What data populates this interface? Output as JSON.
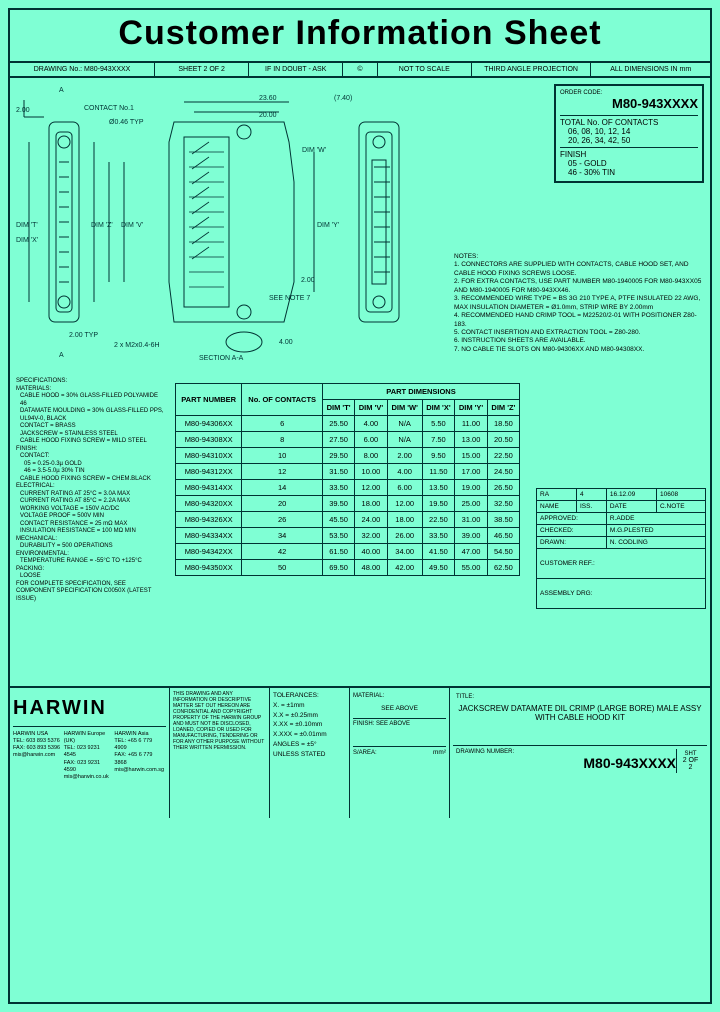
{
  "title": "Customer Information Sheet",
  "info_row": {
    "drawing_no": "DRAWING No.: M80-943XXXX",
    "sheet": "SHEET 2 OF 2",
    "doubt": "IF IN DOUBT - ASK",
    "copyright": "©",
    "scale": "NOT TO SCALE",
    "projection": "THIRD ANGLE PROJECTION",
    "dims": "ALL DIMENSIONS IN mm"
  },
  "order": {
    "label": "ORDER CODE:",
    "code": "M80-943XXXX",
    "contacts_label": "TOTAL No. OF CONTACTS",
    "contacts_vals": "06, 08, 10, 12, 14\n20, 26, 34, 42, 50",
    "finish_label": "FINISH",
    "finish_vals": "05 - GOLD\n46 - 30% TIN"
  },
  "drawing_labels": {
    "a": "A",
    "contact1": "CONTACT No.1",
    "d200": "2.00",
    "d2360": "23.60",
    "d2000": "20.00",
    "d740": "(7.40)",
    "d046": "Ø0.46 TYP",
    "dimw": "DIM 'W'",
    "dimt": "DIM 'T'",
    "dimx": "DIM 'X'",
    "dimz": "DIM 'Z'",
    "dimv": "DIM 'V'",
    "dimy": "DIM 'Y'",
    "d200b": "2.00",
    "d200typ": "2.00 TYP",
    "note7": "SEE NOTE 7",
    "m2": "2 x M2x0.4-6H",
    "d400": "4.00",
    "section": "SECTION A-A"
  },
  "notes": {
    "header": "NOTES:",
    "n1": "1. CONNECTORS ARE SUPPLIED WITH CONTACTS, CABLE HOOD SET, AND CABLE HOOD FIXING SCREWS LOOSE.",
    "n2": "2. FOR EXTRA CONTACTS, USE PART NUMBER M80-1940005 FOR M80-943XX05 AND M80-1940005 FOR M80-943XX46.",
    "n3": "3. RECOMMENDED WIRE TYPE = BS 3G 210 TYPE A, PTFE INSULATED 22 AWG, MAX INSULATION DIAMETER = Ø1.0mm, STRIP WIRE BY 2.00mm",
    "n4": "4. RECOMMENDED HAND CRIMP TOOL = M22520/2-01 WITH POSITIONER Z80-183.",
    "n5": "5. CONTACT INSERTION AND EXTRACTION TOOL = Z80-280.",
    "n6": "6. INSTRUCTION SHEETS ARE AVAILABLE.",
    "n7": "7. NO CABLE TIE SLOTS ON M80-94306XX AND M80-94308XX."
  },
  "specs": {
    "header": "SPECIFICATIONS:",
    "materials": "MATERIALS:",
    "m1": "CABLE HOOD = 30% GLASS-FILLED POLYAMIDE 46",
    "m2": "DATAMATE MOULDING = 30% GLASS-FILLED PPS, UL94V-0, BLACK",
    "m3": "CONTACT = BRASS",
    "m4": "JACKSCREW = STAINLESS STEEL",
    "m5": "CABLE HOOD FIXING SCREW = MILD STEEL",
    "finish": "FINISH:",
    "f0": "CONTACT:",
    "f1": "05 = 0.25-0.3µ GOLD",
    "f2": "46 = 3.5-5.0µ 30% TIN",
    "f3": "CABLE HOOD FIXING SCREW = CHEM.BLACK",
    "electrical": "ELECTRICAL:",
    "e1": "CURRENT RATING AT 25°C = 3.0A MAX",
    "e2": "CURRENT RATING AT 85°C = 2.2A MAX",
    "e3": "WORKING VOLTAGE = 150V AC/DC",
    "e4": "VOLTAGE PROOF = 500V MIN",
    "e5": "CONTACT RESISTANCE = 25 mΩ MAX",
    "e6": "INSULATION RESISTANCE = 100 MΩ MIN",
    "mechanical": "MECHANICAL:",
    "me1": "DURABILITY = 500 OPERATIONS",
    "environmental": "ENVIRONMENTAL:",
    "en1": "TEMPERATURE RANGE = -55°C TO +125°C",
    "pack": "PACKING:",
    "p1": "LOOSE",
    "footer": "FOR COMPLETE SPECIFICATION, SEE COMPONENT SPECIFICATION C0050X (LATEST ISSUE)"
  },
  "table": {
    "h_part": "PART NUMBER",
    "h_contacts": "No. OF CONTACTS",
    "h_dims": "PART DIMENSIONS",
    "cols": [
      "DIM 'T'",
      "DIM 'V'",
      "DIM 'W'",
      "DIM 'X'",
      "DIM 'Y'",
      "DIM 'Z'"
    ],
    "rows": [
      [
        "M80-94306XX",
        "6",
        "25.50",
        "4.00",
        "N/A",
        "5.50",
        "11.00",
        "18.50"
      ],
      [
        "M80-94308XX",
        "8",
        "27.50",
        "6.00",
        "N/A",
        "7.50",
        "13.00",
        "20.50"
      ],
      [
        "M80-94310XX",
        "10",
        "29.50",
        "8.00",
        "2.00",
        "9.50",
        "15.00",
        "22.50"
      ],
      [
        "M80-94312XX",
        "12",
        "31.50",
        "10.00",
        "4.00",
        "11.50",
        "17.00",
        "24.50"
      ],
      [
        "M80-94314XX",
        "14",
        "33.50",
        "12.00",
        "6.00",
        "13.50",
        "19.00",
        "26.50"
      ],
      [
        "M80-94320XX",
        "20",
        "39.50",
        "18.00",
        "12.00",
        "19.50",
        "25.00",
        "32.50"
      ],
      [
        "M80-94326XX",
        "26",
        "45.50",
        "24.00",
        "18.00",
        "22.50",
        "31.00",
        "38.50"
      ],
      [
        "M80-94334XX",
        "34",
        "53.50",
        "32.00",
        "26.00",
        "33.50",
        "39.00",
        "46.50"
      ],
      [
        "M80-94342XX",
        "42",
        "61.50",
        "40.00",
        "34.00",
        "41.50",
        "47.00",
        "54.50"
      ],
      [
        "M80-94350XX",
        "50",
        "69.50",
        "48.00",
        "42.00",
        "49.50",
        "55.00",
        "62.50"
      ]
    ]
  },
  "rev": {
    "headers": [
      "NAME",
      "ISS.",
      "DATE",
      "C.NOTE"
    ],
    "row0": [
      "RA",
      "4",
      "16.12.09",
      "10608"
    ],
    "approved": "APPROVED:",
    "approved_v": "R.ADDE",
    "checked": "CHECKED:",
    "checked_v": "M.G.PLESTED",
    "drawn": "DRAWN:",
    "drawn_v": "N. CODLING",
    "customer": "CUSTOMER REF.:",
    "assembly": "ASSEMBLY DRG:"
  },
  "titleblock": {
    "logo": "HARWIN",
    "usa": "HARWIN USA\nTEL: 603 893 5376\nFAX: 603 893 5396\nmis@harwin.com",
    "eur": "HARWIN Europe (UK)\nTEL: 023 9231 4545\nFAX: 023 9231 4590\nmis@harwin.co.uk",
    "asia": "HARWIN Asia\nTEL: +65 6 779 4909\nFAX: +65 6 779 3868\nmis@harwin.com.sg",
    "disclaimer": "THIS DRAWING AND ANY INFORMATION OR DESCRIPTIVE MATTER SET OUT HEREON ARE CONFIDENTIAL AND COPYRIGHT PROPERTY OF THE HARWIN GROUP AND MUST NOT BE DISCLOSED, LOANED, COPIED OR USED FOR MANUFACTURING, TENDERING OR FOR ANY OTHER PURPOSE WITHOUT THEIR WRITTEN PERMISSION.",
    "tol_label": "TOLERANCES:",
    "tol1": "X. = ±1mm",
    "tol2": "X.X = ±0.25mm",
    "tol3": "X.XX = ±0.10mm",
    "tol4": "X.XXX = ±0.01mm",
    "tol5": "ANGLES = ±5°",
    "tol6": "UNLESS STATED",
    "mat_label": "MATERIAL:",
    "mat_val": "SEE ABOVE",
    "fin_label": "FINISH: SEE ABOVE",
    "area_label": "S/AREA:",
    "area_unit": "mm²",
    "title_label": "TITLE:",
    "title_val": "JACKSCREW DATAMATE DIL CRIMP (LARGE BORE) MALE ASSY WITH CABLE HOOD KIT",
    "dn_label": "DRAWING NUMBER:",
    "dn_val": "M80-943XXXX",
    "sht_label": "SHT",
    "sht_val": "2 OF 2"
  }
}
